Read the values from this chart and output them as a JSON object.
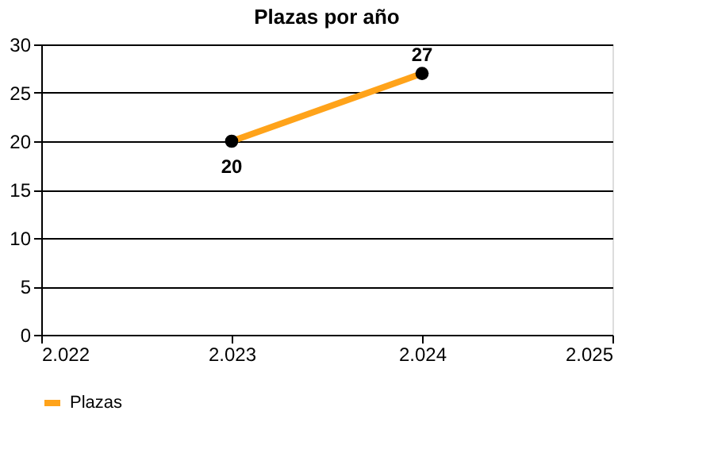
{
  "chart_data": {
    "type": "line",
    "title": "Plazas por año",
    "x": [
      2023,
      2024
    ],
    "series": [
      {
        "name": "Plazas",
        "color": "#ffa31a",
        "values": [
          20,
          27
        ]
      }
    ],
    "xlim": [
      2022,
      2025
    ],
    "xticks": [
      {
        "value": 2022,
        "label": "2.022"
      },
      {
        "value": 2023,
        "label": "2.023"
      },
      {
        "value": 2024,
        "label": "2.024"
      },
      {
        "value": 2025,
        "label": "2.025"
      }
    ],
    "ylim": [
      0,
      30
    ],
    "yticks": [
      0,
      5,
      10,
      15,
      20,
      25,
      30
    ],
    "grid": "y",
    "legend": "bottom",
    "marker": "circle",
    "line_style": "solid",
    "data_labels": true
  }
}
